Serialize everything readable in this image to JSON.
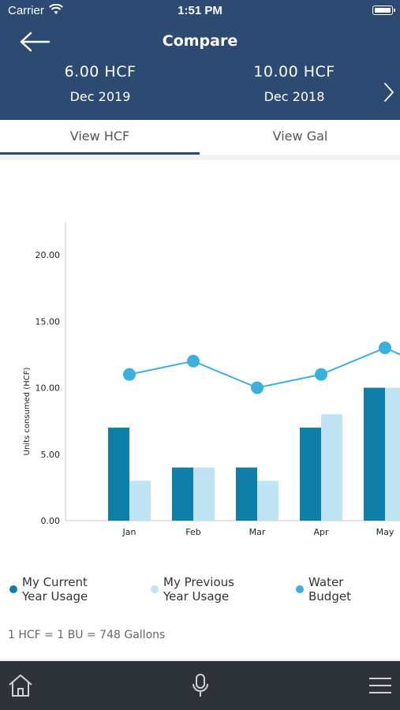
{
  "status_bar": {
    "carrier": "Carrier",
    "time": "1:51 PM"
  },
  "header": {
    "title": "Compare",
    "left_period": {
      "value": "6.00 HCF",
      "date": "Dec 2019"
    },
    "right_period": {
      "value": "10.00 HCF",
      "date": "Dec 2018"
    }
  },
  "tabs": [
    {
      "label": "View HCF",
      "active": true
    },
    {
      "label": "View Gal",
      "active": false
    }
  ],
  "chart_data": {
    "type": "bar",
    "categories": [
      "Jan",
      "Feb",
      "Mar",
      "Apr",
      "May"
    ],
    "ylabel": "Units consumed (HCF)",
    "ylim": [
      0,
      20
    ],
    "yticks": [
      "0.00",
      "5.00",
      "10.00",
      "15.00",
      "20.00"
    ],
    "series": [
      {
        "name": "My Current Year Usage",
        "type": "bar",
        "color": "#0e7fa8",
        "values": [
          7,
          4,
          4,
          7,
          10
        ]
      },
      {
        "name": "My Previous Year Usage",
        "type": "bar",
        "color": "#bfe3f3",
        "values": [
          3,
          4,
          3,
          8,
          10
        ]
      },
      {
        "name": "Water Budget",
        "type": "line",
        "color": "#3ab0de",
        "values": [
          11,
          12,
          10,
          11,
          13
        ]
      }
    ]
  },
  "legend": [
    {
      "line1": "My Current",
      "line2": "Year Usage",
      "color": "#0e7fa8"
    },
    {
      "line1": "My Previous",
      "line2": "Year Usage",
      "color": "#bfe3f3"
    },
    {
      "line1": "Water",
      "line2": "Budget",
      "color": "#3ab0de"
    }
  ],
  "conversion_note": "1 HCF = 1 BU = 748 Gallons",
  "bottom_nav": {
    "icons": [
      "home-icon",
      "microphone-icon",
      "menu-icon"
    ]
  }
}
